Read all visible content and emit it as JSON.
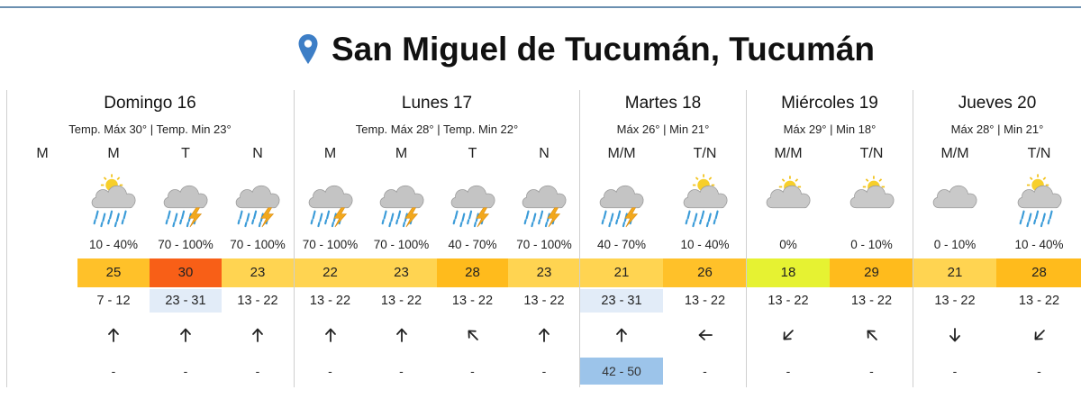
{
  "location": {
    "title": "San Miguel de Tucumán, Tucumán",
    "pin_color": "#3d7ec6"
  },
  "colors": {
    "t18": "#e6f232",
    "t21": "#ffd451",
    "t22": "#ffd451",
    "t23": "#ffd451",
    "t25": "#ffc129",
    "t26": "#ffc129",
    "t28": "#ffbb1c",
    "t29": "#ffbb1c",
    "t30": "#f85f17",
    "wind_highlight": "#e2ecf8",
    "gust_highlight": "#9cc4ea"
  },
  "days": [
    {
      "name": "Domingo 16",
      "summary": "Temp. Máx 30° | Temp. Min 23°",
      "periods": [
        {
          "label": "M",
          "icon": "none",
          "prob": "",
          "temp": "",
          "wind": "",
          "dir": "none",
          "gust": ""
        },
        {
          "label": "M",
          "icon": "cloud-sun-rain-icon",
          "prob": "10 - 40%",
          "temp": "25",
          "temp_color": "#ffc129",
          "wind": "7 - 12",
          "dir": "up",
          "gust": "-"
        },
        {
          "label": "T",
          "icon": "thunderstorm-icon",
          "prob": "70 - 100%",
          "temp": "30",
          "temp_color": "#f85f17",
          "wind": "23 - 31",
          "wind_hl": true,
          "dir": "up",
          "gust": "-"
        },
        {
          "label": "N",
          "icon": "thunderstorm-icon",
          "prob": "70 - 100%",
          "temp": "23",
          "temp_color": "#ffd451",
          "wind": "13 - 22",
          "dir": "up",
          "gust": "-"
        }
      ]
    },
    {
      "name": "Lunes 17",
      "summary": "Temp. Máx 28° | Temp. Min 22°",
      "periods": [
        {
          "label": "M",
          "icon": "thunderstorm-icon",
          "prob": "70 - 100%",
          "temp": "22",
          "temp_color": "#ffd451",
          "wind": "13 - 22",
          "dir": "up",
          "gust": "-"
        },
        {
          "label": "M",
          "icon": "thunderstorm-icon",
          "prob": "70 - 100%",
          "temp": "23",
          "temp_color": "#ffd451",
          "wind": "13 - 22",
          "dir": "up",
          "gust": "-"
        },
        {
          "label": "T",
          "icon": "thunderstorm-icon",
          "prob": "40 - 70%",
          "temp": "28",
          "temp_color": "#ffbb1c",
          "wind": "13 - 22",
          "dir": "up-left",
          "gust": "-"
        },
        {
          "label": "N",
          "icon": "thunderstorm-icon",
          "prob": "70 - 100%",
          "temp": "23",
          "temp_color": "#ffd451",
          "wind": "13 - 22",
          "dir": "up",
          "gust": "-"
        }
      ]
    },
    {
      "name": "Martes 18",
      "summary": "Máx 26° | Min 21°",
      "periods": [
        {
          "label": "M/M",
          "icon": "thunderstorm-icon",
          "prob": "40 - 70%",
          "temp": "21",
          "temp_color": "#ffd451",
          "wind": "23 - 31",
          "wind_hl": true,
          "dir": "up",
          "gust": "42 - 50",
          "gust_hl": true
        },
        {
          "label": "T/N",
          "icon": "cloud-sun-rain-icon",
          "prob": "10 - 40%",
          "temp": "26",
          "temp_color": "#ffc129",
          "wind": "13 - 22",
          "dir": "left",
          "gust": "-"
        }
      ]
    },
    {
      "name": "Miércoles 19",
      "summary": "Máx 29° | Min 18°",
      "periods": [
        {
          "label": "M/M",
          "icon": "partly-cloudy-icon",
          "prob": "0%",
          "temp": "18",
          "temp_color": "#e6f232",
          "wind": "13 - 22",
          "dir": "down-left",
          "gust": "-"
        },
        {
          "label": "T/N",
          "icon": "partly-cloudy-icon",
          "prob": "0 - 10%",
          "temp": "29",
          "temp_color": "#ffbb1c",
          "wind": "13 - 22",
          "dir": "up-left",
          "gust": "-"
        }
      ]
    },
    {
      "name": "Jueves 20",
      "summary": "Máx 28° | Min 21°",
      "periods": [
        {
          "label": "M/M",
          "icon": "cloud-icon",
          "prob": "0 - 10%",
          "temp": "21",
          "temp_color": "#ffd451",
          "wind": "13 - 22",
          "dir": "down",
          "gust": "-"
        },
        {
          "label": "T/N",
          "icon": "cloud-sun-rain-icon",
          "prob": "10 - 40%",
          "temp": "28",
          "temp_color": "#ffbb1c",
          "wind": "13 - 22",
          "dir": "down-left",
          "gust": "-"
        }
      ]
    }
  ]
}
